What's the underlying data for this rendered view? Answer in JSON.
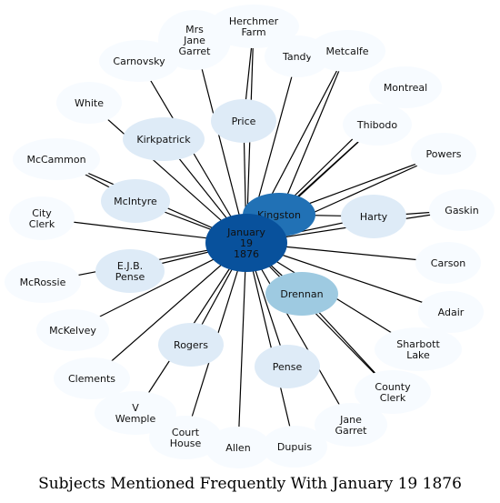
{
  "title": "Subjects Mentioned Frequently With January 19 1876",
  "colors": {
    "center": "#08519c",
    "level_strong": "#2171b5",
    "level_medium": "#9ecae1",
    "level_light": "#deebf7",
    "level_faint": "#f7fbff",
    "edge": "#000000"
  },
  "center": {
    "id": "january-19-1876",
    "label": [
      "January",
      "19",
      "1876"
    ],
    "level": "center"
  },
  "nodes": [
    {
      "id": "herchmer-farm",
      "label": [
        "Herchmer",
        "Farm"
      ],
      "level": "faint"
    },
    {
      "id": "mrs-jane-garret",
      "label": [
        "Mrs",
        "Jane",
        "Garret"
      ],
      "level": "faint"
    },
    {
      "id": "carnovsky",
      "label": [
        "Carnovsky"
      ],
      "level": "faint"
    },
    {
      "id": "tandy",
      "label": [
        "Tandy"
      ],
      "level": "faint"
    },
    {
      "id": "metcalfe",
      "label": [
        "Metcalfe"
      ],
      "level": "faint"
    },
    {
      "id": "montreal",
      "label": [
        "Montreal"
      ],
      "level": "faint"
    },
    {
      "id": "white",
      "label": [
        "White"
      ],
      "level": "faint"
    },
    {
      "id": "price",
      "label": [
        "Price"
      ],
      "level": "light"
    },
    {
      "id": "thibodo",
      "label": [
        "Thibodo"
      ],
      "level": "faint"
    },
    {
      "id": "kirkpatrick",
      "label": [
        "Kirkpatrick"
      ],
      "level": "light"
    },
    {
      "id": "powers",
      "label": [
        "Powers"
      ],
      "level": "faint"
    },
    {
      "id": "mccammon",
      "label": [
        "McCammon"
      ],
      "level": "faint"
    },
    {
      "id": "mcintyre",
      "label": [
        "McIntyre"
      ],
      "level": "light"
    },
    {
      "id": "kingston",
      "label": [
        "Kingston"
      ],
      "level": "strong"
    },
    {
      "id": "gaskin",
      "label": [
        "Gaskin"
      ],
      "level": "faint"
    },
    {
      "id": "city-clerk",
      "label": [
        "City",
        "Clerk"
      ],
      "level": "faint"
    },
    {
      "id": "harty",
      "label": [
        "Harty"
      ],
      "level": "light"
    },
    {
      "id": "carson",
      "label": [
        "Carson"
      ],
      "level": "faint"
    },
    {
      "id": "ejb-pense",
      "label": [
        "E.J.B.",
        "Pense"
      ],
      "level": "light"
    },
    {
      "id": "mcrossie",
      "label": [
        "McRossie"
      ],
      "level": "faint"
    },
    {
      "id": "drennan",
      "label": [
        "Drennan"
      ],
      "level": "medium"
    },
    {
      "id": "adair",
      "label": [
        "Adair"
      ],
      "level": "faint"
    },
    {
      "id": "mckelvey",
      "label": [
        "McKelvey"
      ],
      "level": "faint"
    },
    {
      "id": "rogers",
      "label": [
        "Rogers"
      ],
      "level": "light"
    },
    {
      "id": "sharbott-lake",
      "label": [
        "Sharbott",
        "Lake"
      ],
      "level": "faint"
    },
    {
      "id": "clements",
      "label": [
        "Clements"
      ],
      "level": "faint"
    },
    {
      "id": "pense",
      "label": [
        "Pense"
      ],
      "level": "light"
    },
    {
      "id": "county-clerk",
      "label": [
        "County",
        "Clerk"
      ],
      "level": "faint"
    },
    {
      "id": "v-wemple",
      "label": [
        "V",
        "Wemple"
      ],
      "level": "faint"
    },
    {
      "id": "jane-garret",
      "label": [
        "Jane",
        "Garret"
      ],
      "level": "faint"
    },
    {
      "id": "court-house",
      "label": [
        "Court",
        "House"
      ],
      "level": "faint"
    },
    {
      "id": "allen",
      "label": [
        "Allen"
      ],
      "level": "faint"
    },
    {
      "id": "dupuis",
      "label": [
        "Dupuis"
      ],
      "level": "faint"
    }
  ],
  "extra_edges": [
    [
      "kingston",
      "thibodo"
    ],
    [
      "kingston",
      "metcalfe"
    ],
    [
      "kingston",
      "powers"
    ],
    [
      "kingston",
      "harty"
    ],
    [
      "harty",
      "gaskin"
    ],
    [
      "drennan",
      "county-clerk"
    ],
    [
      "mcintyre",
      "mccammon"
    ],
    [
      "price",
      "herchmer-farm"
    ]
  ]
}
